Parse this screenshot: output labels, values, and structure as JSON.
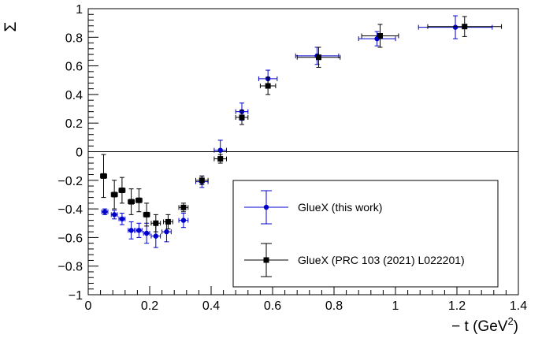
{
  "chart_data": {
    "type": "scatter",
    "title": "",
    "xlabel": "− t (GeV",
    "xlabel_superscript": "2",
    "xlabel_close": ")",
    "ylabel": "Σ",
    "xlim": [
      0,
      1.4
    ],
    "ylim": [
      -1,
      1
    ],
    "x_ticks": [
      0,
      0.2,
      0.4,
      0.6,
      0.8,
      1,
      1.2,
      1.4
    ],
    "x_tick_labels": [
      "0",
      "0.2",
      "0.4",
      "0.6",
      "0.8",
      "1",
      "1.2",
      "1.4"
    ],
    "y_ticks": [
      -1,
      -0.8,
      -0.6,
      -0.4,
      -0.2,
      0,
      0.2,
      0.4,
      0.6,
      0.8,
      1
    ],
    "y_tick_labels": [
      "−1",
      "−0.8",
      "−0.6",
      "−0.4",
      "−0.2",
      "0",
      "0.2",
      "0.4",
      "0.6",
      "0.8",
      "1"
    ],
    "reference_line_y": 0,
    "grid": false,
    "legend_position": "bottom-right",
    "series": [
      {
        "name": "GlueX (this work)",
        "color": "#0000cc",
        "marker": "circle",
        "points": [
          {
            "x": 0.054,
            "y": -0.42,
            "yerr": 0.02,
            "xerr": 0.01
          },
          {
            "x": 0.085,
            "y": -0.44,
            "yerr": 0.03,
            "xerr": 0.01
          },
          {
            "x": 0.11,
            "y": -0.47,
            "yerr": 0.04,
            "xerr": 0.01
          },
          {
            "x": 0.14,
            "y": -0.55,
            "yerr": 0.06,
            "xerr": 0.01
          },
          {
            "x": 0.165,
            "y": -0.55,
            "yerr": 0.05,
            "xerr": 0.01
          },
          {
            "x": 0.19,
            "y": -0.57,
            "yerr": 0.07,
            "xerr": 0.01
          },
          {
            "x": 0.22,
            "y": -0.59,
            "yerr": 0.08,
            "xerr": 0.015
          },
          {
            "x": 0.255,
            "y": -0.56,
            "yerr": 0.07,
            "xerr": 0.015
          },
          {
            "x": 0.31,
            "y": -0.48,
            "yerr": 0.05,
            "xerr": 0.015
          },
          {
            "x": 0.37,
            "y": -0.21,
            "yerr": 0.04,
            "xerr": 0.02
          },
          {
            "x": 0.43,
            "y": 0.01,
            "yerr": 0.07,
            "xerr": 0.02
          },
          {
            "x": 0.5,
            "y": 0.28,
            "yerr": 0.06,
            "xerr": 0.02
          },
          {
            "x": 0.585,
            "y": 0.51,
            "yerr": 0.06,
            "xerr": 0.03
          },
          {
            "x": 0.745,
            "y": 0.67,
            "yerr": 0.06,
            "xerr": 0.07
          },
          {
            "x": 0.94,
            "y": 0.79,
            "yerr": 0.05,
            "xerr": 0.06
          },
          {
            "x": 1.195,
            "y": 0.87,
            "yerr": 0.08,
            "xerr": 0.12
          }
        ]
      },
      {
        "name": "GlueX (PRC 103 (2021) L022201)",
        "color": "#000000",
        "marker": "square",
        "points": [
          {
            "x": 0.05,
            "y": -0.17,
            "yerr": 0.15,
            "xerr": 0.01
          },
          {
            "x": 0.085,
            "y": -0.3,
            "yerr": 0.1,
            "xerr": 0.01
          },
          {
            "x": 0.11,
            "y": -0.27,
            "yerr": 0.09,
            "xerr": 0.01
          },
          {
            "x": 0.14,
            "y": -0.35,
            "yerr": 0.09,
            "xerr": 0.01
          },
          {
            "x": 0.165,
            "y": -0.34,
            "yerr": 0.08,
            "xerr": 0.01
          },
          {
            "x": 0.19,
            "y": -0.44,
            "yerr": 0.08,
            "xerr": 0.01
          },
          {
            "x": 0.22,
            "y": -0.5,
            "yerr": 0.06,
            "xerr": 0.015
          },
          {
            "x": 0.26,
            "y": -0.49,
            "yerr": 0.05,
            "xerr": 0.015
          },
          {
            "x": 0.31,
            "y": -0.39,
            "yerr": 0.03,
            "xerr": 0.015
          },
          {
            "x": 0.37,
            "y": -0.2,
            "yerr": 0.03,
            "xerr": 0.02
          },
          {
            "x": 0.43,
            "y": -0.05,
            "yerr": 0.03,
            "xerr": 0.02
          },
          {
            "x": 0.5,
            "y": 0.24,
            "yerr": 0.05,
            "xerr": 0.02
          },
          {
            "x": 0.585,
            "y": 0.46,
            "yerr": 0.06,
            "xerr": 0.025
          },
          {
            "x": 0.75,
            "y": 0.66,
            "yerr": 0.07,
            "xerr": 0.07
          },
          {
            "x": 0.95,
            "y": 0.81,
            "yerr": 0.08,
            "xerr": 0.06
          },
          {
            "x": 1.225,
            "y": 0.875,
            "yerr": 0.07,
            "xerr": 0.12
          }
        ]
      }
    ]
  }
}
